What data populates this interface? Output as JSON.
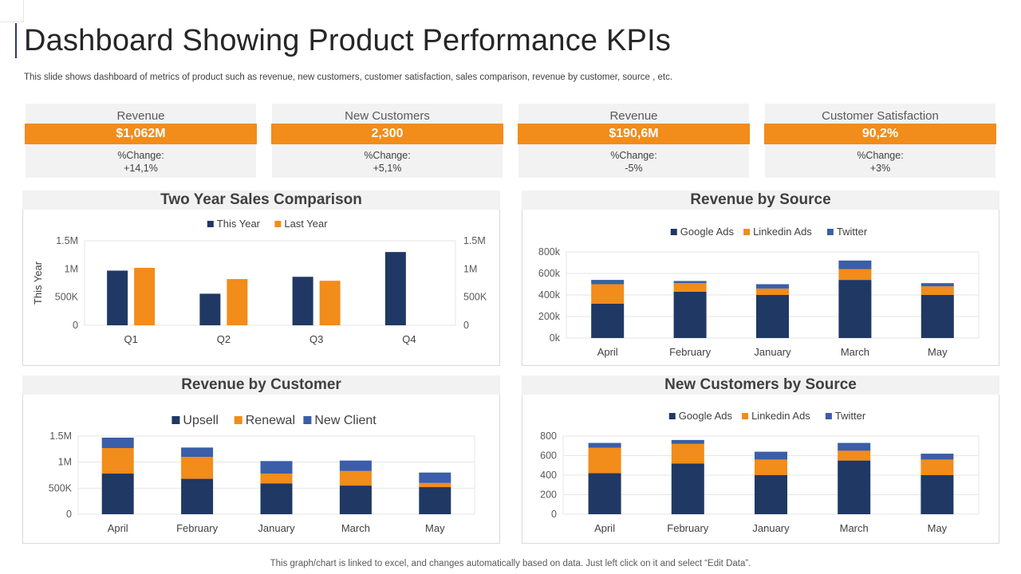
{
  "title": "Dashboard Showing Product Performance KPIs",
  "subtitle": "This slide shows dashboard of metrics of product such as revenue, new customers, customer satisfaction, sales comparison, revenue by customer, source , etc.",
  "footer": "This graph/chart is linked to excel,  and changes automatically based on data. Just left click on it and select “Edit Data”.",
  "colors": {
    "navy": "#203864",
    "orange": "#f28c1a",
    "blue": "#3a5ea8",
    "panel_gray": "#f2f2f2"
  },
  "kpis": [
    {
      "label": "Revenue",
      "value": "$1,062M",
      "change_label": "%Change:",
      "change_value": "+14,1%"
    },
    {
      "label": "New Customers",
      "value": "2,300",
      "change_label": "%Change:",
      "change_value": "+5,1%"
    },
    {
      "label": "Revenue",
      "value": "$190,6M",
      "change_label": "%Change:",
      "change_value": "-5%"
    },
    {
      "label": "Customer Satisfaction",
      "value": "90,2%",
      "change_label": "%Change:",
      "change_value": "+3%"
    }
  ],
  "chart_data": [
    {
      "id": "sales",
      "type": "bar",
      "title": "Two Year Sales Comparison",
      "ylabel": "This Year",
      "categories": [
        "Q1",
        "Q2",
        "Q3",
        "Q4"
      ],
      "series": [
        {
          "name": "This Year",
          "values": [
            970000,
            560000,
            860000,
            1300000
          ]
        },
        {
          "name": "Last Year",
          "values": [
            1020000,
            820000,
            790000,
            null
          ]
        }
      ],
      "ylim": [
        0,
        1500000
      ],
      "yticks": [
        "0",
        "500K",
        "1M",
        "1.5M"
      ],
      "yticks_right": [
        "0",
        "500K",
        "1M",
        "1.5M"
      ],
      "legend": "top"
    },
    {
      "id": "revsource",
      "type": "bar",
      "stacked": true,
      "title": "Revenue by Source",
      "categories": [
        "April",
        "February",
        "January",
        "March",
        "May"
      ],
      "series": [
        {
          "name": "Google Ads",
          "values": [
            320000,
            430000,
            400000,
            540000,
            400000
          ]
        },
        {
          "name": "Linkedin Ads",
          "values": [
            180000,
            80000,
            60000,
            100000,
            80000
          ]
        },
        {
          "name": "Twitter",
          "values": [
            40000,
            20000,
            40000,
            80000,
            30000
          ]
        }
      ],
      "ylim": [
        0,
        800000
      ],
      "yticks": [
        "0k",
        "200k",
        "400k",
        "600k",
        "800k"
      ],
      "legend": "top"
    },
    {
      "id": "revcustomer",
      "type": "bar",
      "stacked": true,
      "title": "Revenue by Customer",
      "categories": [
        "April",
        "February",
        "January",
        "March",
        "May"
      ],
      "series": [
        {
          "name": "Upsell",
          "values": [
            780000,
            680000,
            590000,
            550000,
            520000
          ]
        },
        {
          "name": "Renewal",
          "values": [
            490000,
            420000,
            190000,
            280000,
            80000
          ]
        },
        {
          "name": "New Client",
          "values": [
            200000,
            180000,
            240000,
            200000,
            200000
          ]
        }
      ],
      "ylim": [
        0,
        1500000
      ],
      "yticks": [
        "0",
        "500K",
        "1M",
        "1.5M"
      ],
      "legend": "top"
    },
    {
      "id": "custsource",
      "type": "bar",
      "stacked": true,
      "title": "New Customers by Source",
      "categories": [
        "April",
        "February",
        "January",
        "March",
        "May"
      ],
      "series": [
        {
          "name": "Google Ads",
          "values": [
            420,
            520,
            400,
            550,
            400
          ]
        },
        {
          "name": "Linkedin Ads",
          "values": [
            260,
            200,
            160,
            100,
            160
          ]
        },
        {
          "name": "Twitter",
          "values": [
            50,
            40,
            80,
            80,
            60
          ]
        }
      ],
      "ylim": [
        0,
        800
      ],
      "yticks": [
        "0",
        "200",
        "400",
        "600",
        "800"
      ],
      "legend": "top"
    }
  ]
}
